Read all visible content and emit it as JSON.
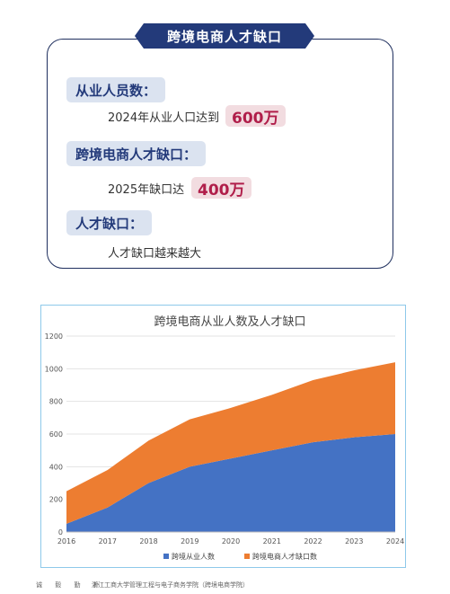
{
  "card": {
    "title": "跨境电商人才缺口",
    "items": [
      {
        "heading": "从业人员数：",
        "text": "2024年从业人口达到",
        "value": "600万"
      },
      {
        "heading": "跨境电商人才缺口：",
        "text": "2025年缺口达",
        "value": "400万"
      },
      {
        "heading": "人才缺口：",
        "text": "人才缺口越来越大",
        "value": ""
      }
    ]
  },
  "chart_data": {
    "type": "area",
    "stacked": true,
    "title": "跨境电商从业人数及人才缺口",
    "xlabel": "",
    "ylabel": "",
    "x": [
      "2016",
      "2017",
      "2018",
      "2019",
      "2020",
      "2021",
      "2022",
      "2023",
      "2024"
    ],
    "ylim": [
      0,
      1200
    ],
    "yticks": [
      0,
      200,
      400,
      600,
      800,
      1000,
      1200
    ],
    "grid": true,
    "legend_position": "bottom",
    "series": [
      {
        "name": "跨境从业人数",
        "values": [
          50,
          150,
          300,
          400,
          450,
          500,
          550,
          580,
          600
        ],
        "color": "#4472c4"
      },
      {
        "name": "跨境电商人才缺口数",
        "values": [
          200,
          230,
          260,
          290,
          310,
          340,
          380,
          410,
          440
        ],
        "color": "#ed7d31"
      }
    ]
  },
  "footer": {
    "left": "诚 毅 勤 朴",
    "right": "浙江工商大学管理工程与电子商务学院（跨境电商学院）"
  }
}
